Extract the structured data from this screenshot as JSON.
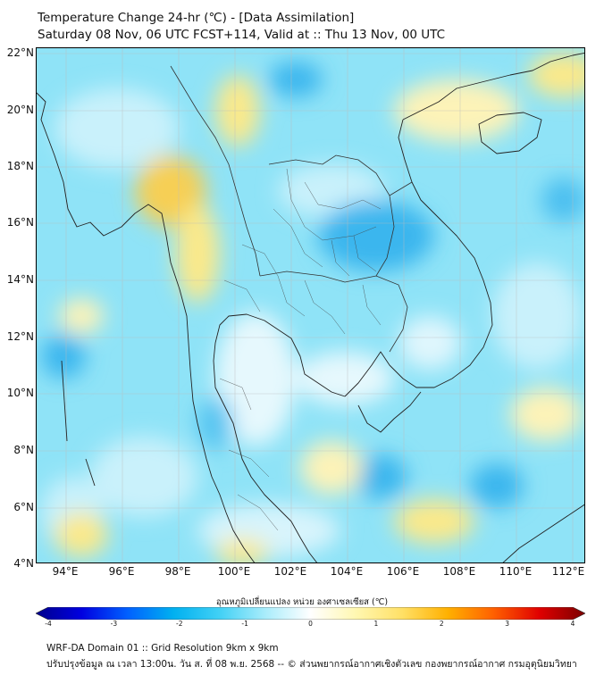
{
  "title": {
    "line1": "Temperature Change 24-hr (℃) - [Data Assimilation]",
    "line2": "Saturday 08 Nov, 06 UTC FCST+114, Valid at :: Thu 13 Nov, 00 UTC"
  },
  "map": {
    "lat_labels": [
      "22°N",
      "20°N",
      "18°N",
      "16°N",
      "14°N",
      "12°N",
      "10°N",
      "8°N",
      "6°N",
      "4°N"
    ],
    "lon_labels": [
      "94°E",
      "96°E",
      "98°E",
      "100°E",
      "102°E",
      "104°E",
      "106°E",
      "108°E",
      "110°E",
      "112°E"
    ],
    "colors": {
      "background_cyan": "#8fe3f7",
      "light": "#c9f1fb",
      "blue": "#3bb6ee",
      "yellow": "#fbe98a",
      "orange": "#f6cf54",
      "coast": "#222222"
    }
  },
  "colorbar": {
    "title": "อุณหภูมิเปลี่ยนแปลง หน่วย องศาเซลเซียส (℃)",
    "min": -4,
    "max": 4,
    "tick_labels": [
      "-4",
      "-3",
      "-2",
      "-1",
      "0",
      "1",
      "2",
      "3",
      "4"
    ],
    "stops": [
      "#00008b",
      "#0000e0",
      "#0060ff",
      "#00b0f0",
      "#40d0f5",
      "#a8ecfb",
      "#ffffff",
      "#fff7b0",
      "#ffe066",
      "#ffb000",
      "#ff6000",
      "#e00000",
      "#7a0000"
    ]
  },
  "footer": {
    "line1": "WRF-DA Domain 01 :: Grid Resolution 9km x 9km",
    "line2": "ปรับปรุงข้อมูล ณ เวลา 13:00น. วัน ส. ที่ 08 พ.ย. 2568 -- © ส่วนพยากรณ์อากาศเชิงตัวเลข กองพยากรณ์อากาศ กรมอุตุนิยมวิทยา"
  }
}
